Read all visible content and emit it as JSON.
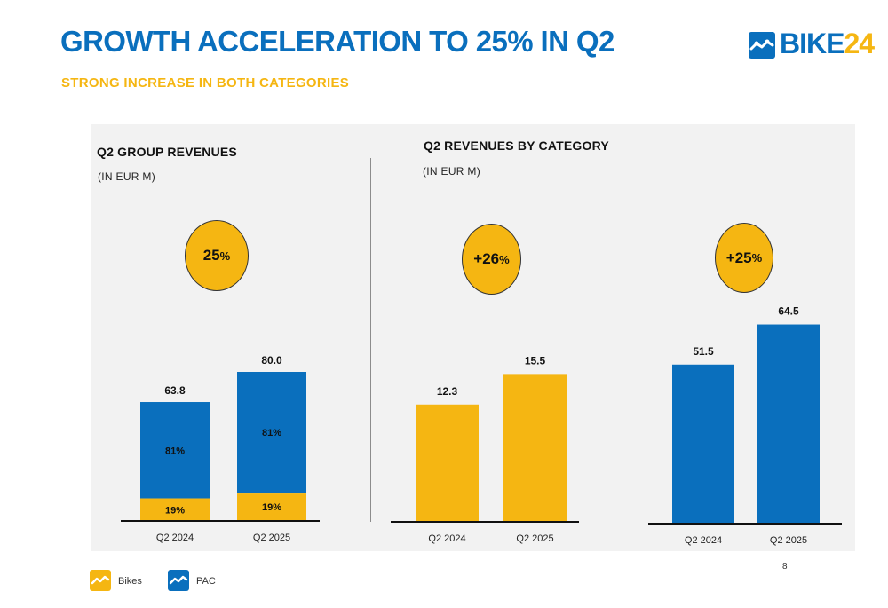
{
  "header": {
    "title": "GROWTH ACCELERATION TO 25% IN Q2",
    "subtitle": "STRONG INCREASE IN BOTH CATEGORIES"
  },
  "logo": {
    "text_main": "BIKE",
    "text_accent": "24"
  },
  "colors": {
    "blue": "#0a6fbd",
    "yellow": "#f5b612",
    "panel": "#f2f2f2"
  },
  "left_section": {
    "title": "Q2 GROUP REVENUES",
    "unit": "(IN EUR M)",
    "growth_badge": {
      "value": "25",
      "unit": "%"
    }
  },
  "right_section": {
    "title": "Q2 REVENUES BY CATEGORY",
    "unit": "(IN EUR M)",
    "badges": [
      {
        "value": "+26",
        "unit": "%"
      },
      {
        "value": "+25",
        "unit": "%"
      }
    ]
  },
  "chart_data": [
    {
      "type": "bar",
      "stacked": true,
      "title": "Q2 GROUP REVENUES",
      "unit": "(IN EUR M)",
      "categories": [
        "Q2 2024",
        "Q2 2025"
      ],
      "totals": [
        "63.8",
        "80.0"
      ],
      "series": [
        {
          "name": "Bikes",
          "color": "#f5b612",
          "share_labels": [
            "19%",
            "19%"
          ],
          "share": [
            19,
            19
          ]
        },
        {
          "name": "PAC",
          "color": "#0a6fbd",
          "share_labels": [
            "81%",
            "81%"
          ],
          "share": [
            81,
            81
          ]
        }
      ],
      "values": [
        63.8,
        80.0
      ]
    },
    {
      "type": "bar",
      "title": "Bikes",
      "categories": [
        "Q2 2024",
        "Q2 2025"
      ],
      "values": [
        12.3,
        15.5
      ],
      "value_labels": [
        "12.3",
        "15.5"
      ],
      "color": "#f5b612"
    },
    {
      "type": "bar",
      "title": "PAC",
      "categories": [
        "Q2 2024",
        "Q2 2025"
      ],
      "values": [
        51.5,
        64.5
      ],
      "value_labels": [
        "51.5",
        "64.5"
      ],
      "color": "#0a6fbd"
    }
  ],
  "legend": [
    {
      "label": "Bikes",
      "color": "#f5b612",
      "icon": "bike-chain-icon"
    },
    {
      "label": "PAC",
      "color": "#0a6fbd",
      "icon": "bike-chain-icon"
    }
  ],
  "footer": {
    "page_number": "8"
  }
}
